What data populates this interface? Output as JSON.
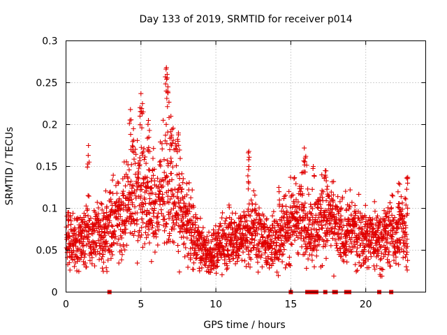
{
  "chart_data": {
    "type": "scatter",
    "title": "Day 133 of 2019, SRMTID for receiver p014",
    "xlabel": "GPS time / hours",
    "ylabel": "SRMTID / TECUs",
    "xlim": [
      0,
      24
    ],
    "ylim": [
      0,
      0.3
    ],
    "x_ticks": [
      0,
      5,
      10,
      15,
      20
    ],
    "x_tick_labels": [
      "0",
      "5",
      "10",
      "15",
      "20"
    ],
    "y_ticks": [
      0,
      0.05,
      0.1,
      0.15,
      0.2,
      0.25,
      0.3
    ],
    "y_tick_labels": [
      "0",
      "0.05",
      "0.1",
      "0.15",
      "0.2",
      "0.25",
      "0.3"
    ],
    "grid": true,
    "marker": "+",
    "color": "#e00000",
    "trend": [
      [
        0.0,
        0.06
      ],
      [
        0.5,
        0.058
      ],
      [
        1.0,
        0.062
      ],
      [
        1.5,
        0.07
      ],
      [
        2.0,
        0.068
      ],
      [
        2.5,
        0.075
      ],
      [
        3.0,
        0.08
      ],
      [
        3.5,
        0.09
      ],
      [
        4.0,
        0.1
      ],
      [
        4.5,
        0.115
      ],
      [
        5.0,
        0.125
      ],
      [
        5.5,
        0.115
      ],
      [
        6.0,
        0.1
      ],
      [
        6.5,
        0.12
      ],
      [
        7.0,
        0.13
      ],
      [
        7.5,
        0.11
      ],
      [
        8.0,
        0.085
      ],
      [
        8.5,
        0.07
      ],
      [
        9.0,
        0.055
      ],
      [
        9.5,
        0.045
      ],
      [
        10.0,
        0.05
      ],
      [
        10.5,
        0.06
      ],
      [
        11.0,
        0.065
      ],
      [
        11.5,
        0.065
      ],
      [
        12.0,
        0.07
      ],
      [
        12.5,
        0.08
      ],
      [
        13.0,
        0.065
      ],
      [
        13.5,
        0.055
      ],
      [
        14.0,
        0.06
      ],
      [
        14.5,
        0.075
      ],
      [
        15.0,
        0.085
      ],
      [
        15.5,
        0.09
      ],
      [
        16.0,
        0.085
      ],
      [
        16.5,
        0.07
      ],
      [
        17.0,
        0.085
      ],
      [
        17.5,
        0.09
      ],
      [
        18.0,
        0.075
      ],
      [
        18.5,
        0.07
      ],
      [
        19.0,
        0.075
      ],
      [
        19.5,
        0.07
      ],
      [
        20.0,
        0.065
      ],
      [
        20.5,
        0.065
      ],
      [
        21.0,
        0.065
      ],
      [
        21.5,
        0.07
      ],
      [
        22.0,
        0.07
      ],
      [
        22.5,
        0.075
      ],
      [
        22.8,
        0.08
      ]
    ],
    "peaks": [
      [
        1.5,
        0.175
      ],
      [
        4.3,
        0.218
      ],
      [
        4.5,
        0.195
      ],
      [
        5.0,
        0.237
      ],
      [
        5.1,
        0.225
      ],
      [
        5.5,
        0.205
      ],
      [
        6.7,
        0.268
      ],
      [
        6.75,
        0.26
      ],
      [
        6.8,
        0.245
      ],
      [
        7.0,
        0.21
      ],
      [
        7.5,
        0.19
      ],
      [
        12.2,
        0.168
      ],
      [
        12.2,
        0.15
      ],
      [
        14.2,
        0.125
      ],
      [
        15.9,
        0.172
      ],
      [
        16.0,
        0.162
      ],
      [
        16.5,
        0.15
      ],
      [
        17.3,
        0.145
      ],
      [
        22.2,
        0.13
      ],
      [
        22.8,
        0.137
      ]
    ],
    "zero_markers_x": [
      2.9,
      15.0,
      16.1,
      16.3,
      16.5,
      16.7,
      17.3,
      17.9,
      18.0,
      18.7,
      18.8,
      18.9,
      20.9,
      21.7
    ]
  }
}
